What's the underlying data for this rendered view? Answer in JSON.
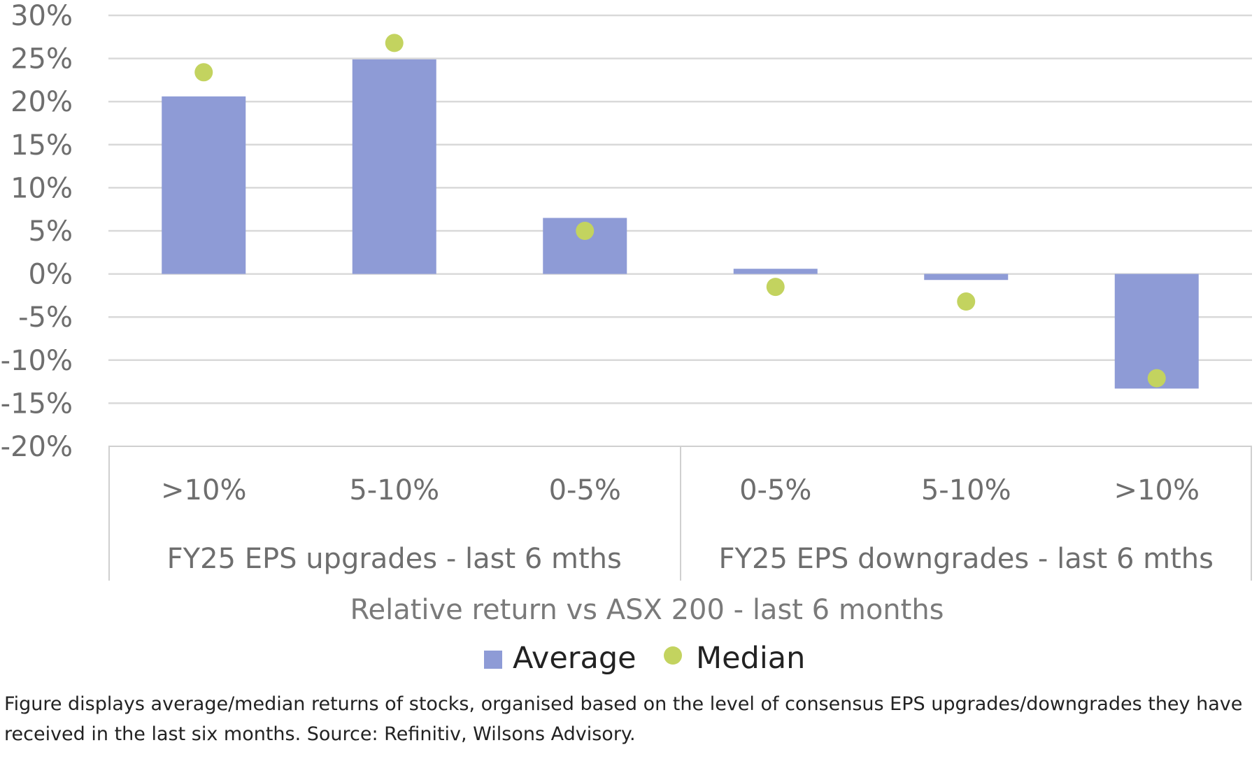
{
  "chart_data": {
    "type": "bar",
    "categories": [
      ">10%",
      "5-10%",
      "0-5%",
      "0-5%",
      "5-10%",
      ">10%"
    ],
    "groups": [
      {
        "label": "FY25 EPS upgrades - last 6 mths",
        "categories": [
          ">10%",
          "5-10%",
          "0-5%"
        ]
      },
      {
        "label": "FY25 EPS downgrades - last 6 mths",
        "categories": [
          "0-5%",
          "5-10%",
          ">10%"
        ]
      }
    ],
    "series": [
      {
        "name": "Average",
        "type": "bar",
        "color": "#8e9bd6",
        "values": [
          20.6,
          24.9,
          6.5,
          0.6,
          -0.7,
          -13.3
        ]
      },
      {
        "name": "Median",
        "type": "scatter",
        "color": "#c3d35f",
        "values": [
          23.4,
          26.8,
          5.0,
          -1.5,
          -3.2,
          -12.1
        ]
      }
    ],
    "xlabel": "Relative return vs ASX 200 - last 6 months",
    "ylabel": "",
    "ylim": [
      -20,
      30
    ],
    "yticks": [
      "30%",
      "25%",
      "20%",
      "15%",
      "10%",
      "5%",
      "0%",
      "-5%",
      "-10%",
      "-15%",
      "-20%"
    ],
    "grid": true,
    "legend_position": "bottom"
  },
  "caption": "Figure displays average/median returns of stocks, organised based on the level of consensus EPS upgrades/downgrades they have received in the last six months. Source: Refinitiv, Wilsons Advisory."
}
